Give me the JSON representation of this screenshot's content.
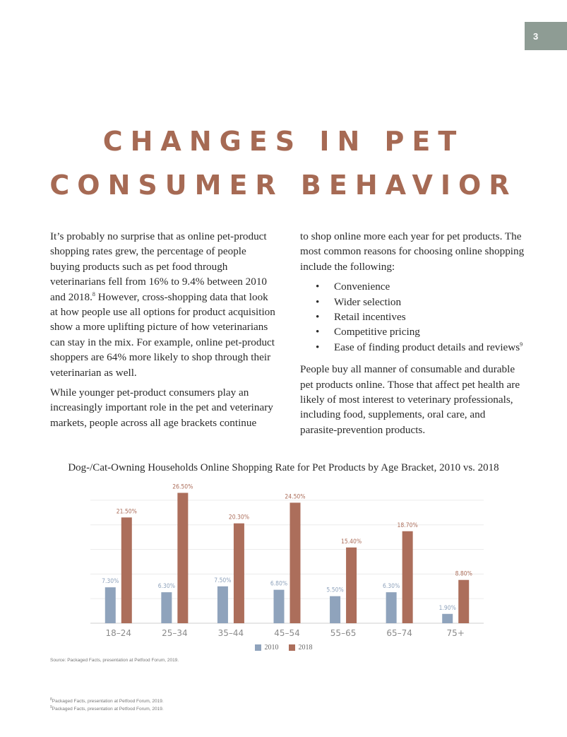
{
  "page_number": "3",
  "heading": {
    "line1": "CHANGES IN PET",
    "line2": "CONSUMER BEHAVIOR"
  },
  "body": {
    "left_p1_pre": "It’s probably no surprise that as online pet-product shopping rates grew, the percentage of people buying products such as pet food through veterinarians fell from 16% to 9.4% between 2010 and 2018.",
    "left_p1_sup": "8",
    "left_p1_post": " However, cross-shopping data that look at how people use all options for product acquisition show a more uplifting picture of how veterinarians can stay in the mix. For example, online pet-product shoppers are 64% more likely to shop through their veterinarian as well.",
    "left_p2": "While younger pet-product consumers play an increasingly important role in the pet and veterinary markets, people across all age brackets continue",
    "right_p1": "to shop online more each year for pet products. The most common reasons for choosing online shopping include the following:",
    "bullets": [
      "Convenience",
      "Wider selection",
      "Retail incentives",
      "Competitive pricing",
      "Ease of finding product details and reviews"
    ],
    "bullet_last_sup": "9",
    "right_p2": "People buy all manner of consumable and durable pet products online. Those that affect pet health are likely of most interest to veterinary professionals, including food, supplements, oral care, and parasite-prevention products."
  },
  "colors": {
    "accent": "#a66a54",
    "series_2010": "#8fa3bc",
    "series_2018": "#ac6e5b",
    "badge": "#8e9c94"
  },
  "chart_data": {
    "type": "bar",
    "title": "Dog-/Cat-Owning Households Online Shopping Rate for Pet Products by Age Bracket, 2010 vs. 2018",
    "categories": [
      "18–24",
      "25–34",
      "35–44",
      "45–54",
      "55–65",
      "65–74",
      "75+"
    ],
    "series": [
      {
        "name": "2010",
        "values": [
          7.3,
          6.3,
          7.5,
          6.8,
          5.5,
          6.3,
          1.9
        ],
        "labels": [
          "7.30%",
          "6.30%",
          "7.50%",
          "6.80%",
          "5.50%",
          "6.30%",
          "1.90%"
        ]
      },
      {
        "name": "2018",
        "values": [
          21.5,
          26.5,
          20.3,
          24.5,
          15.4,
          18.7,
          8.8
        ],
        "labels": [
          "21.50%",
          "26.50%",
          "20.30%",
          "24.50%",
          "15.40%",
          "18.70%",
          "8.80%"
        ]
      }
    ],
    "ylim": [
      0,
      27
    ],
    "xlabel": "",
    "ylabel": "",
    "grid": true,
    "legend": "bottom-center"
  },
  "source": "Source: Packaged Facts, presentation at Petfood Forum, 2019.",
  "footnotes": [
    {
      "num": "8",
      "text": "Packaged Facts, presentation at Petfood Forum, 2019."
    },
    {
      "num": "9",
      "text": "Packaged Facts, presentation at Petfood Forum, 2019."
    }
  ]
}
